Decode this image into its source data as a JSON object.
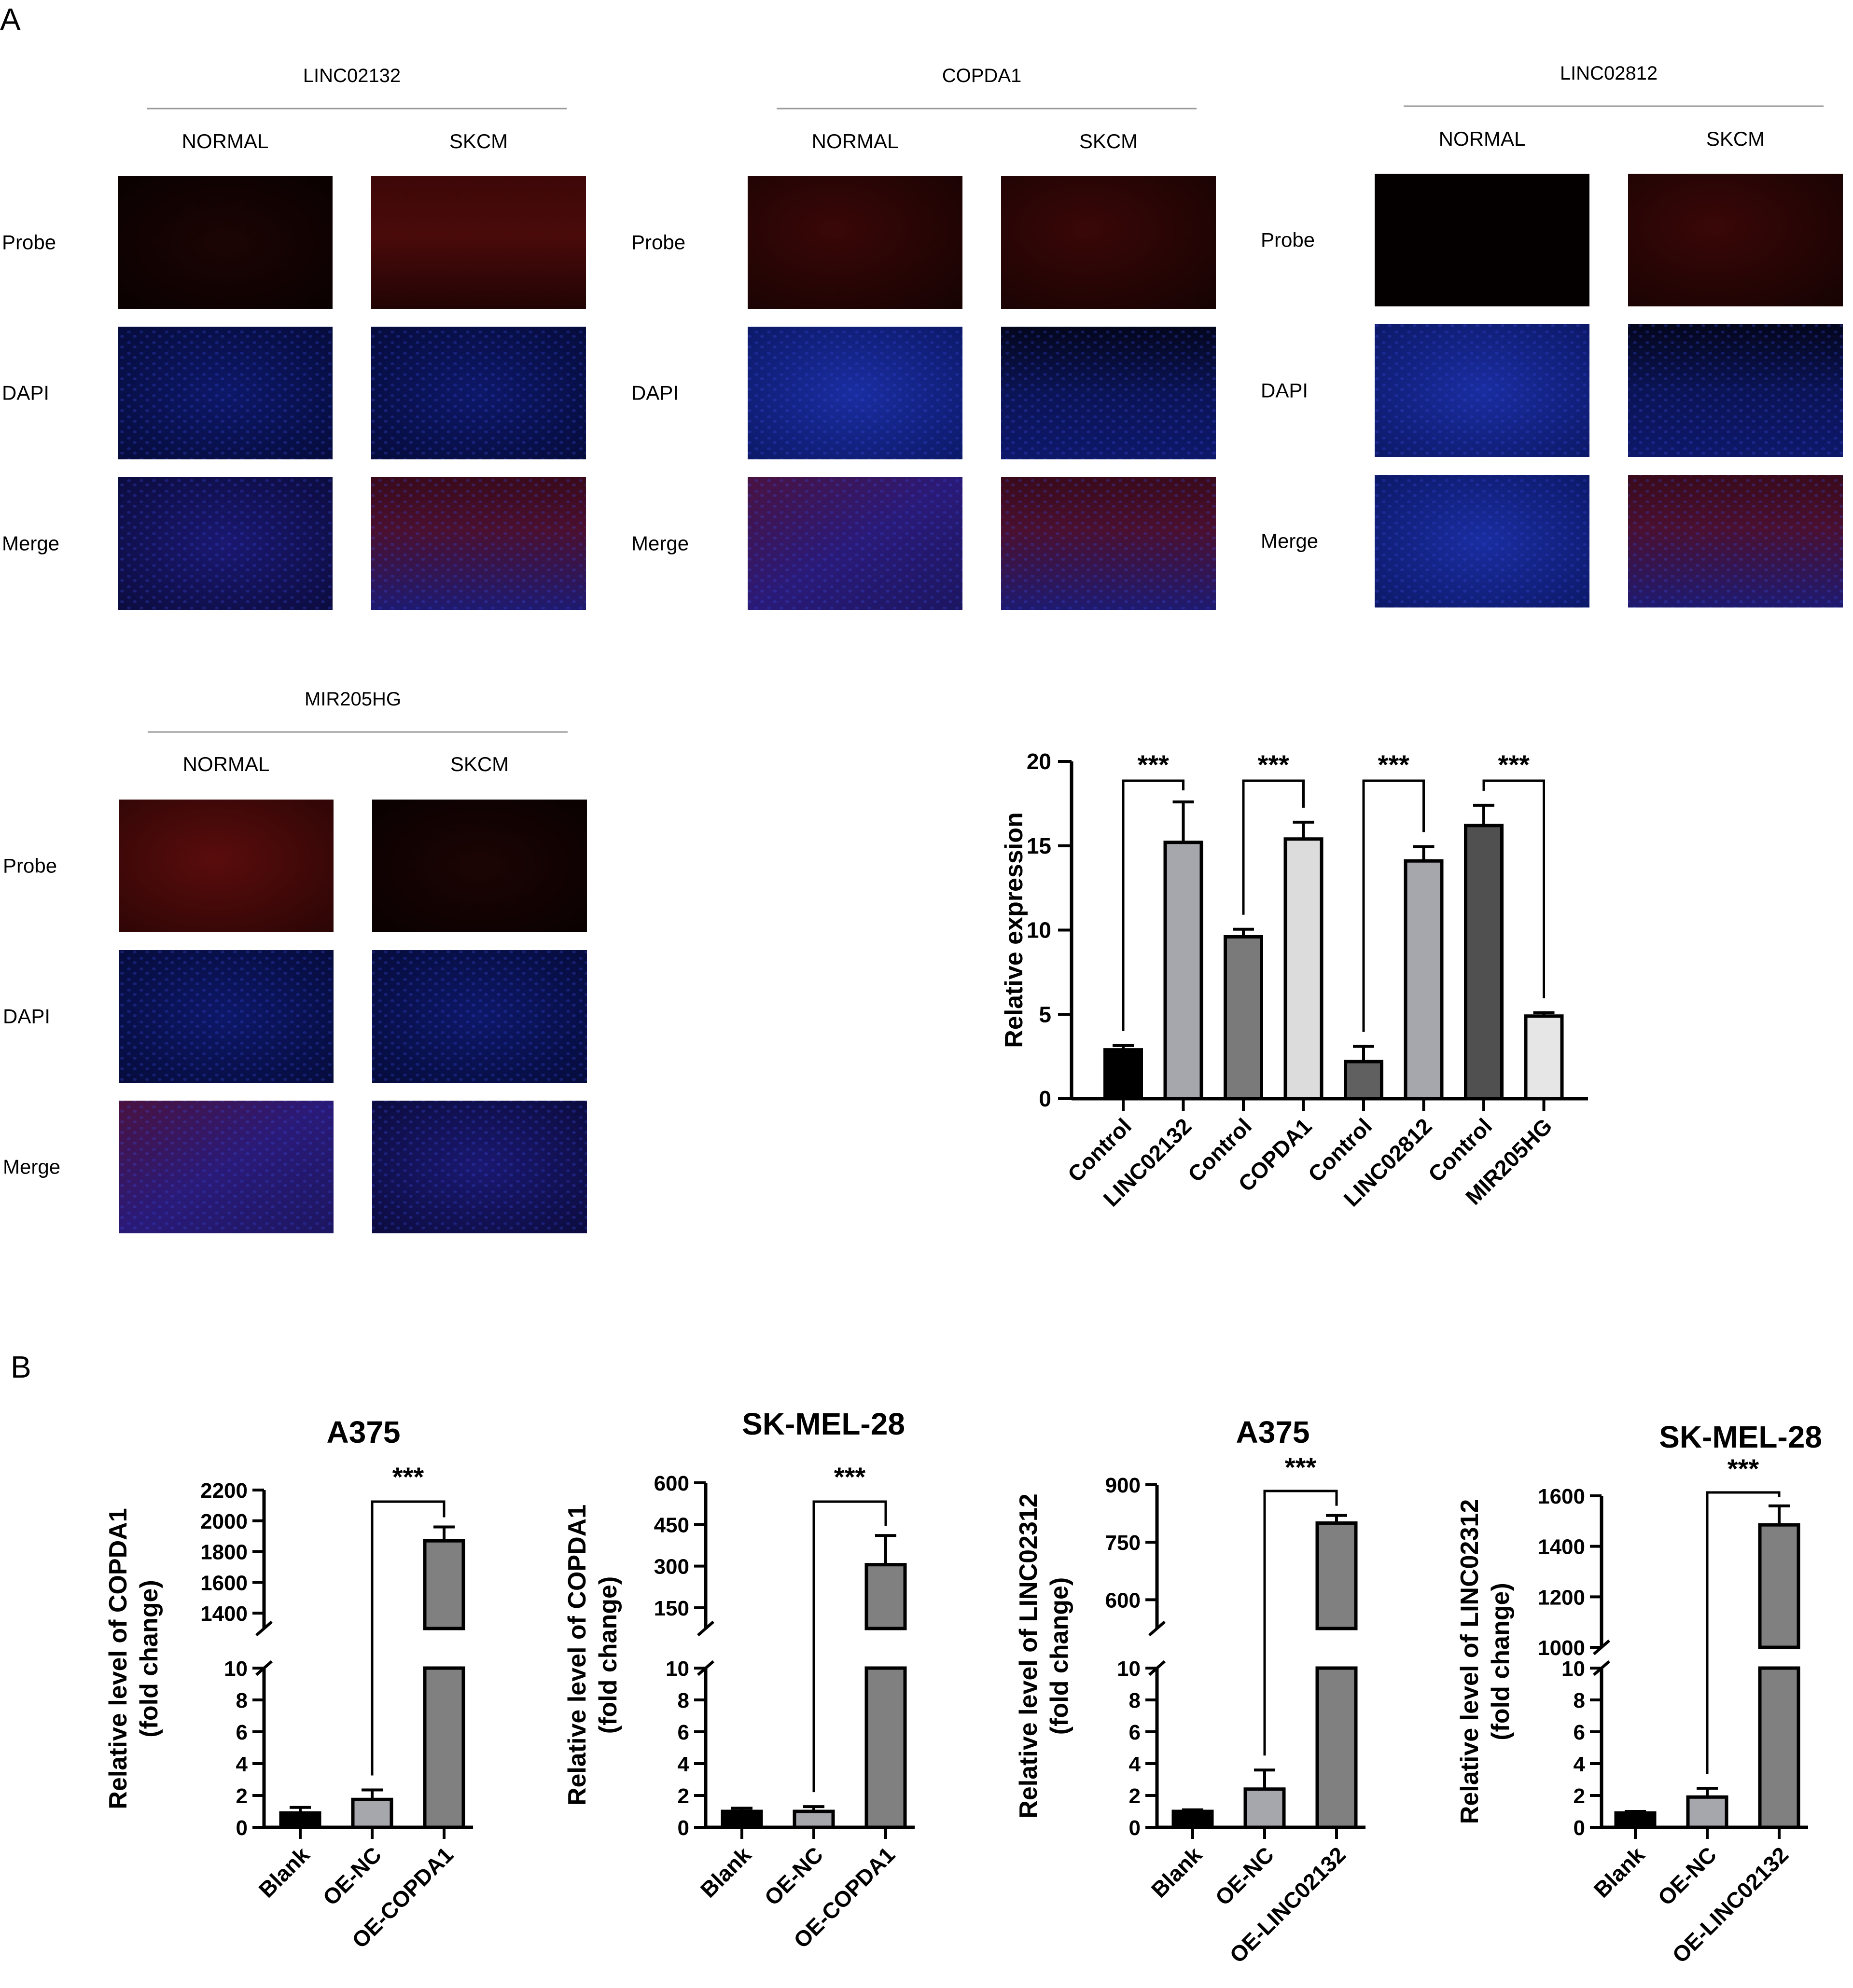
{
  "panel_labels": {
    "a": "A",
    "b": "B"
  },
  "fish": {
    "row_labels": [
      "Probe",
      "DAPI",
      "Merge"
    ],
    "col_labels": [
      "NORMAL",
      "SKCM"
    ],
    "groups": [
      {
        "gene": "LINC02132"
      },
      {
        "gene": "COPDA1"
      },
      {
        "gene": "LINC02812"
      },
      {
        "gene": "MIR205HG"
      }
    ]
  },
  "chart_data": [
    {
      "type": "bar",
      "title": "",
      "ylabel": "Relative expression",
      "ylim": [
        0,
        20
      ],
      "yticks": [
        "0",
        "5",
        "10",
        "15",
        "20"
      ],
      "categories": [
        "Control",
        "LINC02132",
        "Control",
        "COPDA1",
        "Control",
        "LINC02812",
        "Control",
        "MIR205HG"
      ],
      "values": [
        2.9,
        15.2,
        9.6,
        15.4,
        2.2,
        14.1,
        16.2,
        4.9
      ],
      "errors": [
        0.25,
        2.4,
        0.45,
        1.0,
        0.9,
        0.85,
        1.2,
        0.2
      ],
      "colors": [
        "#000000",
        "#a6a6ad",
        "#7a7a7a",
        "#dcdcdc",
        "#606060",
        "#a6a6ad",
        "#505050",
        "#e6e6e6"
      ],
      "significance": [
        {
          "pair": [
            0,
            1
          ],
          "label": "***"
        },
        {
          "pair": [
            2,
            3
          ],
          "label": "***"
        },
        {
          "pair": [
            4,
            5
          ],
          "label": "***"
        },
        {
          "pair": [
            6,
            7
          ],
          "label": "***"
        }
      ]
    },
    {
      "type": "bar",
      "title": "A375",
      "ylabel": [
        "Relative level of COPDA1",
        "(fold change)"
      ],
      "categories": [
        "Blank",
        "OE-NC",
        "OE-COPDA1"
      ],
      "values": [
        0.9,
        1.75,
        1870
      ],
      "errors": [
        0.35,
        0.6,
        90
      ],
      "colors": [
        "#000000",
        "#a6a6ad",
        "#808080"
      ],
      "lower_range": [
        0,
        10
      ],
      "lower_ticks": [
        "0",
        "2",
        "4",
        "6",
        "8",
        "10"
      ],
      "upper_range": [
        1300,
        2200
      ],
      "upper_ticks": [
        "1400",
        "1600",
        "1800",
        "2000",
        "2200"
      ],
      "significance": {
        "pair": [
          1,
          2
        ],
        "label": "***"
      }
    },
    {
      "type": "bar",
      "title": "SK-MEL-28",
      "ylabel": [
        "Relative level of COPDA1",
        "(fold change)"
      ],
      "categories": [
        "Blank",
        "OE-NC",
        "OE-COPDA1"
      ],
      "values": [
        1.0,
        1.0,
        305
      ],
      "errors": [
        0.2,
        0.3,
        105
      ],
      "colors": [
        "#000000",
        "#a6a6ad",
        "#808080"
      ],
      "lower_range": [
        0,
        10
      ],
      "lower_ticks": [
        "0",
        "2",
        "4",
        "6",
        "8",
        "10"
      ],
      "upper_range": [
        75,
        600
      ],
      "upper_ticks": [
        "150",
        "300",
        "450",
        "600"
      ],
      "significance": {
        "pair": [
          1,
          2
        ],
        "label": "***"
      }
    },
    {
      "type": "bar",
      "title": "A375",
      "ylabel": [
        "Relative level of LINC02312",
        "(fold change)"
      ],
      "categories": [
        "Blank",
        "OE-NC",
        "OE-LINC02132"
      ],
      "values": [
        1.0,
        2.4,
        800
      ],
      "errors": [
        0.1,
        1.2,
        20
      ],
      "colors": [
        "#000000",
        "#a6a6ad",
        "#808080"
      ],
      "lower_range": [
        0,
        10
      ],
      "lower_ticks": [
        "0",
        "2",
        "4",
        "6",
        "8",
        "10"
      ],
      "upper_range": [
        525,
        900
      ],
      "upper_ticks": [
        "600",
        "750",
        "900"
      ],
      "significance": {
        "pair": [
          1,
          2
        ],
        "label": "***"
      }
    },
    {
      "type": "bar",
      "title": "SK-MEL-28",
      "ylabel": [
        "Relative level of LINC02312",
        "(fold change)"
      ],
      "categories": [
        "Blank",
        "OE-NC",
        "OE-LINC02132"
      ],
      "values": [
        0.9,
        1.9,
        1485
      ],
      "errors": [
        0.1,
        0.55,
        75
      ],
      "colors": [
        "#000000",
        "#a6a6ad",
        "#808080"
      ],
      "lower_range": [
        0,
        10
      ],
      "lower_ticks": [
        "0",
        "2",
        "4",
        "6",
        "8",
        "10"
      ],
      "upper_range": [
        1000,
        1600
      ],
      "upper_ticks": [
        "1000",
        "1200",
        "1400",
        "1600"
      ],
      "significance": {
        "pair": [
          1,
          2
        ],
        "label": "***"
      }
    }
  ]
}
